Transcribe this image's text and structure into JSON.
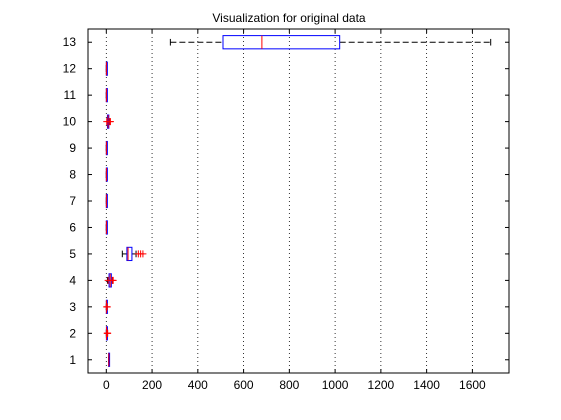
{
  "chart_data": {
    "type": "boxplot",
    "orientation": "horizontal",
    "title": "Visualization for original data",
    "xlabel": "",
    "ylabel": "",
    "xlim": [
      -80,
      1760
    ],
    "ylim": [
      0.5,
      13.5
    ],
    "x_ticks": [
      0,
      200,
      400,
      600,
      800,
      1000,
      1200,
      1400,
      1600
    ],
    "x_tick_labels": [
      "0",
      "200",
      "400",
      "600",
      "800",
      "1000",
      "1200",
      "1400",
      "1600"
    ],
    "y_tick_labels": [
      "1",
      "2",
      "3",
      "4",
      "5",
      "6",
      "7",
      "8",
      "9",
      "10",
      "11",
      "12",
      "13"
    ],
    "grid": "vertical dotted at x ticks",
    "colors": {
      "box": "#0000ff",
      "median": "#ff0000",
      "whisker": "#000000",
      "outlier": "#ff0000"
    },
    "boxes": [
      {
        "label": "1",
        "whisker_low": 10,
        "q1": 10,
        "median": 11,
        "q3": 12,
        "whisker_high": 12,
        "outliers": []
      },
      {
        "label": "2",
        "whisker_low": 0,
        "q1": 0.5,
        "median": 1,
        "q3": 1.5,
        "whisker_high": 2,
        "outliers": [
          4,
          5,
          6
        ]
      },
      {
        "label": "3",
        "whisker_low": 0,
        "q1": 0.3,
        "median": 0.5,
        "q3": 0.8,
        "whisker_high": 1,
        "outliers": [
          2,
          3,
          4
        ]
      },
      {
        "label": "4",
        "whisker_low": 5,
        "q1": 12,
        "median": 17,
        "q3": 22,
        "whisker_high": 28,
        "outliers": [
          8,
          26,
          30
        ]
      },
      {
        "label": "5",
        "whisker_low": 70,
        "q1": 90,
        "median": 95,
        "q3": 112,
        "whisker_high": 130,
        "outliers": [
          140,
          150,
          160
        ]
      },
      {
        "label": "6",
        "whisker_low": 0,
        "q1": 0.2,
        "median": 0.4,
        "q3": 0.6,
        "whisker_high": 1,
        "outliers": []
      },
      {
        "label": "7",
        "whisker_low": 0,
        "q1": 0.2,
        "median": 0.4,
        "q3": 0.6,
        "whisker_high": 1,
        "outliers": []
      },
      {
        "label": "8",
        "whisker_low": 0,
        "q1": 0.2,
        "median": 0.4,
        "q3": 0.6,
        "whisker_high": 1,
        "outliers": []
      },
      {
        "label": "9",
        "whisker_low": 0,
        "q1": 0.2,
        "median": 0.4,
        "q3": 0.6,
        "whisker_high": 1,
        "outliers": []
      },
      {
        "label": "10",
        "whisker_low": 3,
        "q1": 5,
        "median": 8,
        "q3": 11,
        "whisker_high": 13,
        "outliers": [
          2,
          15,
          18
        ]
      },
      {
        "label": "11",
        "whisker_low": 0,
        "q1": 0.2,
        "median": 0.4,
        "q3": 0.6,
        "whisker_high": 1,
        "outliers": []
      },
      {
        "label": "12",
        "whisker_low": 0,
        "q1": 0.2,
        "median": 0.4,
        "q3": 0.6,
        "whisker_high": 1,
        "outliers": []
      },
      {
        "label": "13",
        "whisker_low": 280,
        "q1": 510,
        "median": 680,
        "q3": 1020,
        "whisker_high": 1680,
        "outliers": []
      }
    ]
  }
}
